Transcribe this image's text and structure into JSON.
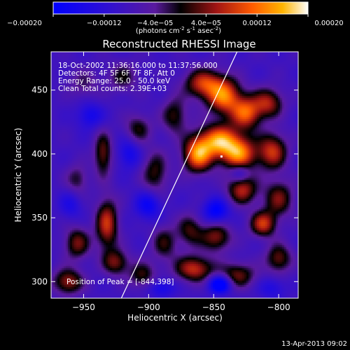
{
  "chart_data": {
    "type": "heatmap",
    "title": "Reconstructed RHESSI Image",
    "xlabel": "Heliocentric X (arcsec)",
    "ylabel": "Heliocentric Y (arcsec)",
    "xlim": [
      -975,
      -785
    ],
    "ylim": [
      287,
      480
    ],
    "xticks": [
      -950,
      -900,
      -850,
      -800
    ],
    "yticks": [
      300,
      350,
      400,
      450
    ],
    "colorbar": {
      "ticks": [
        -0.0002,
        -0.00012,
        -4e-05,
        4e-05,
        0.00012,
        0.0002
      ],
      "tick_labels": [
        "-0.00020",
        "-0.00012",
        "-4.0e-05",
        "4.0e-05",
        "0.00012",
        "0.00020"
      ],
      "range": [
        -0.0002,
        0.0002
      ],
      "units_text": [
        "(photons cm",
        "-2",
        " s",
        "-1",
        " asec",
        "-2",
        ")"
      ]
    },
    "annotations": [
      "18-Oct-2002 11:36:16.000 to 11:37:56.000",
      "Detectors: 4F 5F 6F 7F 8F, Att 0",
      "Energy Range: 25.0 - 50.0 keV",
      "Clean     Total counts: 2.39E+03"
    ],
    "peak_label": "Position of Peak = [-844,398]",
    "peak": [
      -844,
      398
    ],
    "limb_line": [
      [
        -921,
        287
      ],
      [
        -832,
        480
      ]
    ],
    "blobs": [
      {
        "x": -858,
        "y": 455,
        "w": 0.00016,
        "sx": 10,
        "sy": 8
      },
      {
        "x": -842,
        "y": 445,
        "w": 0.0002,
        "sx": 9,
        "sy": 10
      },
      {
        "x": -825,
        "y": 432,
        "w": 0.00018,
        "sx": 8,
        "sy": 9
      },
      {
        "x": -808,
        "y": 440,
        "w": 0.00014,
        "sx": 8,
        "sy": 8
      },
      {
        "x": -845,
        "y": 410,
        "w": 0.00022,
        "sx": 10,
        "sy": 9
      },
      {
        "x": -830,
        "y": 400,
        "w": 0.0002,
        "sx": 9,
        "sy": 9
      },
      {
        "x": -862,
        "y": 400,
        "w": 0.00022,
        "sx": 8,
        "sy": 10
      },
      {
        "x": -805,
        "y": 402,
        "w": 0.00016,
        "sx": 8,
        "sy": 10
      },
      {
        "x": -828,
        "y": 372,
        "w": 0.00015,
        "sx": 8,
        "sy": 8
      },
      {
        "x": -800,
        "y": 365,
        "w": 0.00012,
        "sx": 8,
        "sy": 10
      },
      {
        "x": -812,
        "y": 345,
        "w": 0.00016,
        "sx": 7,
        "sy": 7
      },
      {
        "x": -848,
        "y": 335,
        "w": 0.00013,
        "sx": 8,
        "sy": 8
      },
      {
        "x": -868,
        "y": 340,
        "w": 0.0001,
        "sx": 7,
        "sy": 9
      },
      {
        "x": -865,
        "y": 310,
        "w": 0.00016,
        "sx": 10,
        "sy": 7
      },
      {
        "x": -832,
        "y": 305,
        "w": 0.00012,
        "sx": 10,
        "sy": 7
      },
      {
        "x": -800,
        "y": 318,
        "w": 0.00012,
        "sx": 7,
        "sy": 8
      },
      {
        "x": -880,
        "y": 430,
        "w": 0.0001,
        "sx": 7,
        "sy": 10
      },
      {
        "x": -895,
        "y": 385,
        "w": 0.0001,
        "sx": 7,
        "sy": 12
      },
      {
        "x": -888,
        "y": 330,
        "w": 9e-05,
        "sx": 7,
        "sy": 10
      },
      {
        "x": -905,
        "y": 305,
        "w": 0.0001,
        "sx": 7,
        "sy": 7
      },
      {
        "x": -908,
        "y": 420,
        "w": 9e-05,
        "sx": 7,
        "sy": 8
      },
      {
        "x": -935,
        "y": 400,
        "w": 0.00012,
        "sx": 5,
        "sy": 12
      },
      {
        "x": -932,
        "y": 345,
        "w": 0.00016,
        "sx": 6,
        "sy": 14
      },
      {
        "x": -925,
        "y": 315,
        "w": 0.00012,
        "sx": 7,
        "sy": 7
      },
      {
        "x": -955,
        "y": 330,
        "w": 0.00012,
        "sx": 7,
        "sy": 9
      },
      {
        "x": -962,
        "y": 300,
        "w": 0.00014,
        "sx": 8,
        "sy": 7
      },
      {
        "x": -955,
        "y": 380,
        "w": 8e-05,
        "sx": 6,
        "sy": 8
      },
      {
        "x": -920,
        "y": 460,
        "w": 8e-05,
        "sx": 8,
        "sy": 8
      },
      {
        "x": -950,
        "y": 455,
        "w": 6e-05,
        "sx": 8,
        "sy": 8
      },
      {
        "x": -848,
        "y": 355,
        "w": -0.00012,
        "sx": 7,
        "sy": 7
      },
      {
        "x": -845,
        "y": 298,
        "w": -0.00018,
        "sx": 6,
        "sy": 5
      },
      {
        "x": -830,
        "y": 385,
        "w": -8e-05,
        "sx": 5,
        "sy": 5
      },
      {
        "x": -900,
        "y": 360,
        "w": -0.0001,
        "sx": 7,
        "sy": 8
      },
      {
        "x": -915,
        "y": 400,
        "w": -8e-05,
        "sx": 6,
        "sy": 8
      },
      {
        "x": -945,
        "y": 430,
        "w": -8e-05,
        "sx": 7,
        "sy": 7
      },
      {
        "x": -960,
        "y": 360,
        "w": -6e-05,
        "sx": 6,
        "sy": 8
      },
      {
        "x": -890,
        "y": 295,
        "w": -8e-05,
        "sx": 7,
        "sy": 5
      },
      {
        "x": -805,
        "y": 295,
        "w": -6e-05,
        "sx": 7,
        "sy": 6
      }
    ]
  },
  "footer": {
    "timestamp": "13-Apr-2013 09:02"
  }
}
